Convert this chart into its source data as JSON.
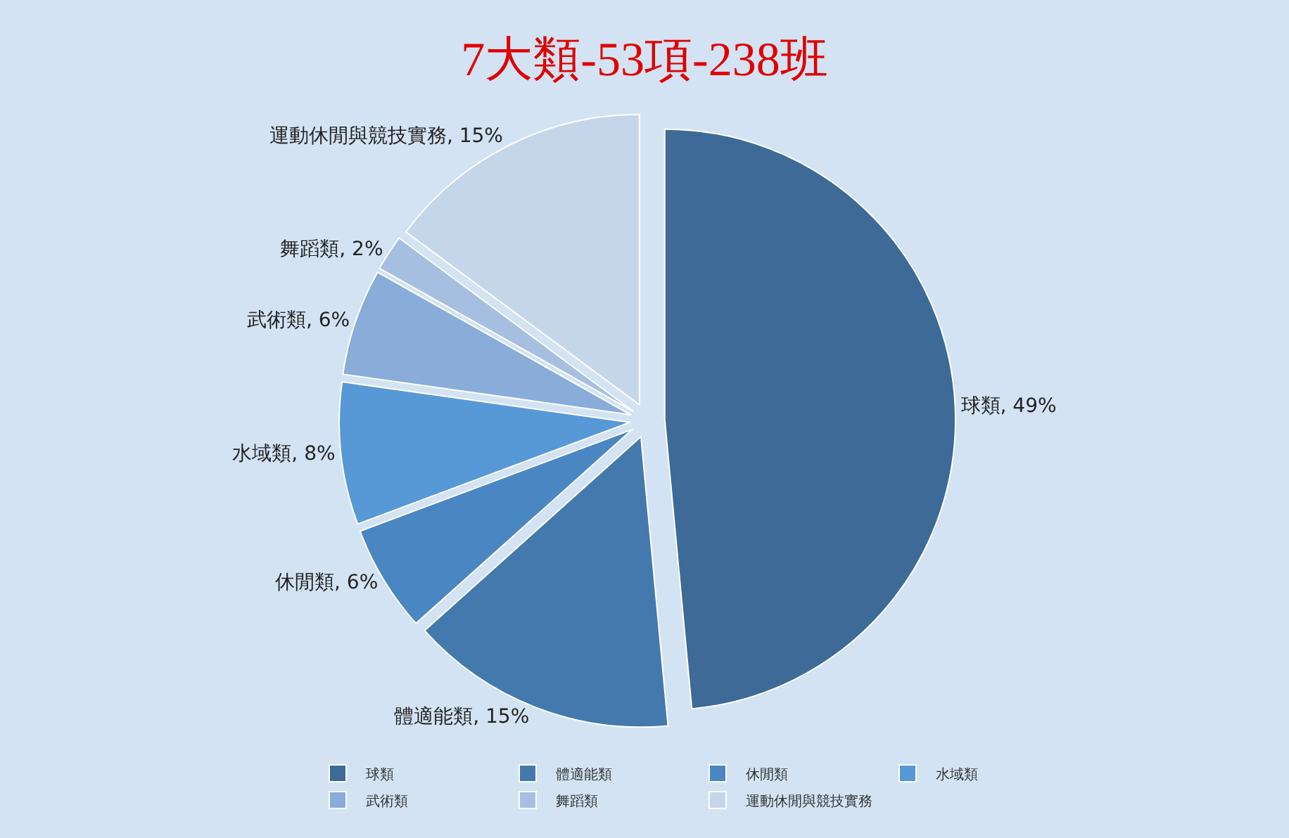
{
  "chart_data": {
    "type": "pie",
    "title": "7大類-53項-238班",
    "categories": [
      "球類",
      "體適能類",
      "休閒類",
      "水域類",
      "武術類",
      "舞蹈類",
      "運動休閒與競技實務"
    ],
    "values": [
      49,
      15,
      6,
      8,
      6,
      2,
      15
    ],
    "value_labels": [
      "球類, 49%",
      "體適能類, 15%",
      "休閒類, 6%",
      "水域類, 8%",
      "武術類, 6%",
      "舞蹈類, 2%",
      "運動休閒與競技實務, 15%"
    ],
    "colors": [
      "#3d6a96",
      "#4479ad",
      "#4a86c2",
      "#5799d6",
      "#89acd9",
      "#a6bfe0",
      "#c6d6ea"
    ],
    "legend": "bottom"
  }
}
